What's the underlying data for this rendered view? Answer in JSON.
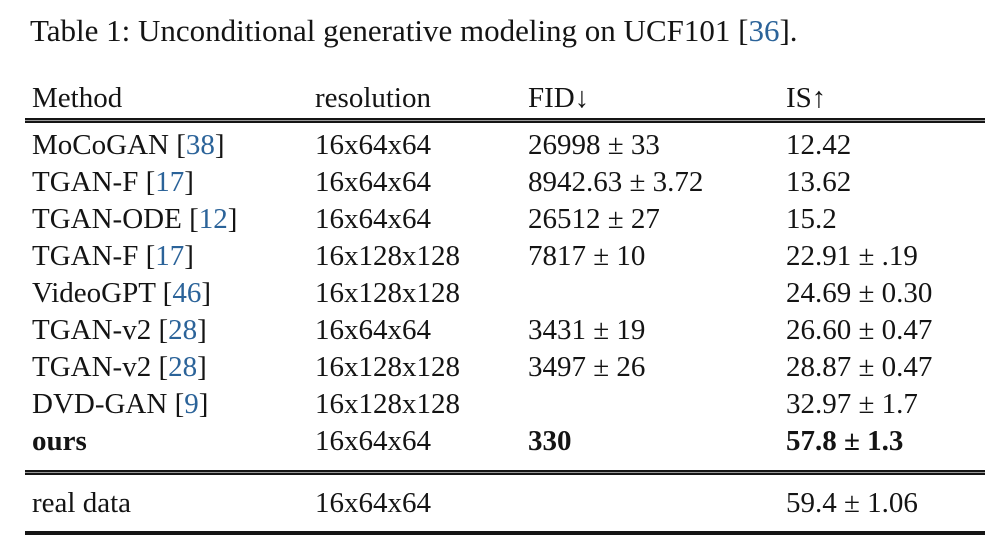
{
  "punct": {
    "open_bracket": " [",
    "close_bracket": "]"
  },
  "title": {
    "text": "Table 1: Unconditional generative modeling on UCF101",
    "cite": "36",
    "suffix": "]."
  },
  "colors": {
    "citation_blue": "#2B6399",
    "text": "#141414",
    "rule": "#151515"
  },
  "table": {
    "headers": [
      "Method",
      "resolution",
      "FID↓",
      "IS↑"
    ],
    "rows": [
      {
        "method": "MoCoGAN",
        "cite": "38",
        "resolution": "16x64x64",
        "fid": "26998 ± 33",
        "is": "12.42"
      },
      {
        "method": "TGAN-F",
        "cite": "17",
        "resolution": "16x64x64",
        "fid": "8942.63 ± 3.72",
        "is": "13.62"
      },
      {
        "method": "TGAN-ODE",
        "cite": "12",
        "resolution": "16x64x64",
        "fid": "26512 ± 27",
        "is": "15.2"
      },
      {
        "method": "TGAN-F",
        "cite": "17",
        "resolution": "16x128x128",
        "fid": "7817 ± 10",
        "is": "22.91 ± .19"
      },
      {
        "method": "VideoGPT",
        "cite": "46",
        "resolution": "16x128x128",
        "fid": "",
        "is": "24.69 ± 0.30"
      },
      {
        "method": "TGAN-v2",
        "cite": "28",
        "resolution": "16x64x64",
        "fid": "3431 ± 19",
        "is": "26.60 ± 0.47"
      },
      {
        "method": "TGAN-v2",
        "cite": "28",
        "resolution": "16x128x128",
        "fid": "3497 ± 26",
        "is": "28.87 ± 0.47"
      },
      {
        "method": "DVD-GAN",
        "cite": "9",
        "resolution": "16x128x128",
        "fid": "",
        "is": "32.97 ± 1.7"
      },
      {
        "method": "ours",
        "resolution": "16x64x64",
        "fid": "330",
        "is": "57.8 ± 1.3"
      }
    ],
    "footer_row": {
      "method": "real data",
      "resolution": "16x64x64",
      "fid": "",
      "is": "59.4 ± 1.06"
    }
  }
}
